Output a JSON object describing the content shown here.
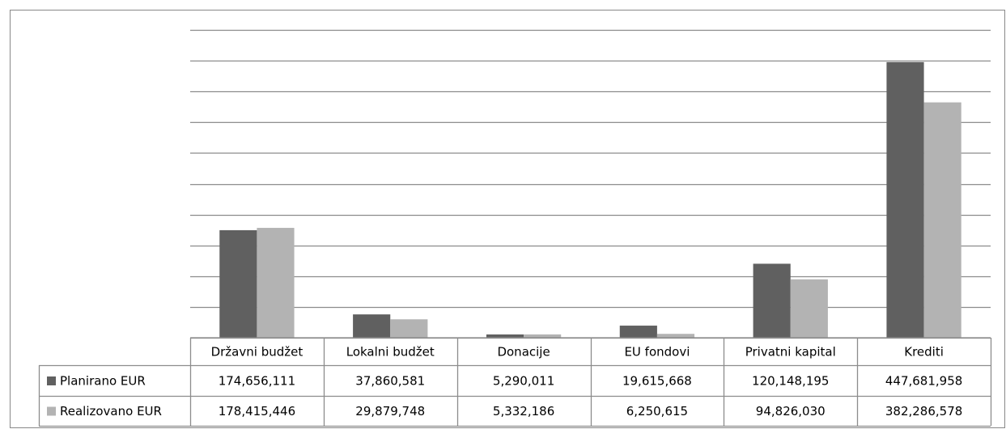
{
  "chart_data": {
    "type": "bar",
    "categories": [
      "Državni budžet",
      "Lokalni budžet",
      "Donacije",
      "EU fondovi",
      "Privatni kapital",
      "Krediti"
    ],
    "series": [
      {
        "name": "Planirano EUR",
        "color": "#606060",
        "values": [
          174656111,
          37860581,
          5290011,
          19615668,
          120148195,
          447681958
        ],
        "value_labels": [
          "174,656,111",
          "37,860,581",
          "5,290,011",
          "19,615,668",
          "120,148,195",
          "447,681,958"
        ]
      },
      {
        "name": "Realizovano EUR",
        "color": "#b3b3b3",
        "values": [
          178415446,
          29879748,
          5332186,
          6250615,
          94826030,
          382286578
        ],
        "value_labels": [
          "178,415,446",
          "29,879,748",
          "5,332,186",
          "6,250,615",
          "94,826,030",
          "382,286,578"
        ]
      }
    ],
    "ylim": [
      0,
      500000000
    ],
    "yticks": [
      0,
      50000000,
      100000000,
      150000000,
      200000000,
      250000000,
      300000000,
      350000000,
      400000000,
      450000000,
      500000000
    ],
    "grid": true,
    "data_table": true
  }
}
